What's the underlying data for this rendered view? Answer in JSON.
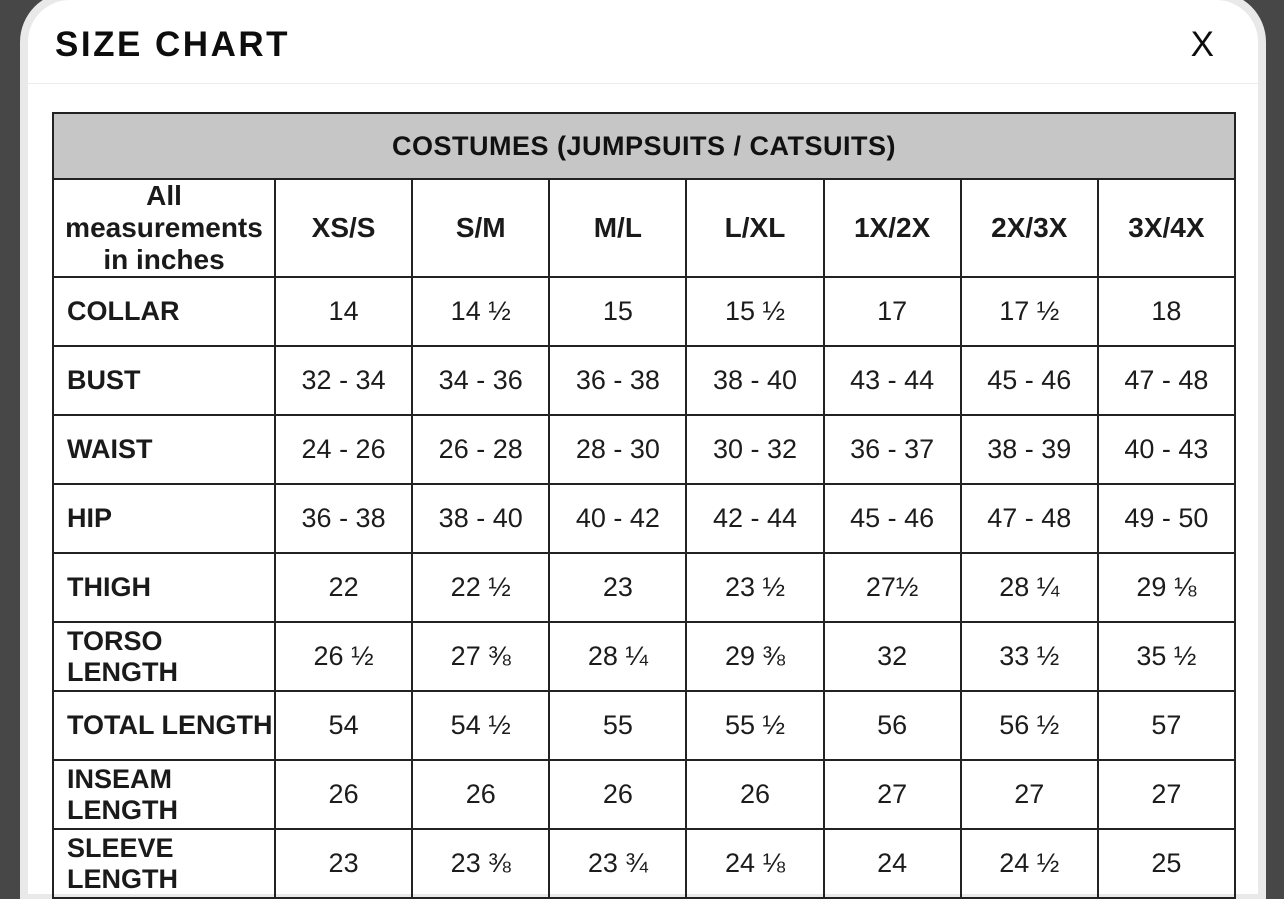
{
  "modal": {
    "title": "SIZE CHART",
    "close_label": "X"
  },
  "table": {
    "caption": "COSTUMES (JUMPSUITS / CATSUITS)",
    "corner_note": "All measurements in inches",
    "size_columns": [
      "XS/S",
      "S/M",
      "M/L",
      "L/XL",
      "1X/2X",
      "2X/3X",
      "3X/4X"
    ],
    "rows": [
      {
        "label": "COLLAR",
        "values": [
          "14",
          "14 ½",
          "15",
          "15 ½",
          "17",
          "17 ½",
          "18"
        ]
      },
      {
        "label": "BUST",
        "values": [
          "32 - 34",
          "34 - 36",
          "36 - 38",
          "38 - 40",
          "43 - 44",
          "45 - 46",
          "47 - 48"
        ]
      },
      {
        "label": "WAIST",
        "values": [
          "24 - 26",
          "26 - 28",
          "28 - 30",
          "30 - 32",
          "36 - 37",
          "38 - 39",
          "40 - 43"
        ]
      },
      {
        "label": "HIP",
        "values": [
          "36 - 38",
          "38 - 40",
          "40 - 42",
          "42 - 44",
          "45 - 46",
          "47 - 48",
          "49 - 50"
        ]
      },
      {
        "label": "THIGH",
        "values": [
          "22",
          "22 ½",
          "23",
          "23 ½",
          "27½",
          "28 ¼",
          "29 ⅛"
        ]
      },
      {
        "label": "TORSO LENGTH",
        "values": [
          "26 ½",
          "27 ⅜",
          "28 ¼",
          "29 ⅜",
          "32",
          "33 ½",
          "35 ½"
        ]
      },
      {
        "label": "TOTAL LENGTH",
        "values": [
          "54",
          "54 ½",
          "55",
          "55 ½",
          "56",
          "56 ½",
          "57"
        ]
      },
      {
        "label": "INSEAM LENGTH",
        "values": [
          "26",
          "26",
          "26",
          "26",
          "27",
          "27",
          "27"
        ]
      },
      {
        "label": "SLEEVE LENGTH",
        "values": [
          "23",
          "23 ⅜",
          "23 ¾",
          "24 ⅛",
          "24",
          "24 ½",
          "25"
        ]
      }
    ]
  },
  "colors": {
    "backdrop": "#474747",
    "modal_ring": "#e9e9e9",
    "caption_background": "#c6c6c6",
    "table_border": "#222222",
    "text": "#1a1a1a"
  }
}
